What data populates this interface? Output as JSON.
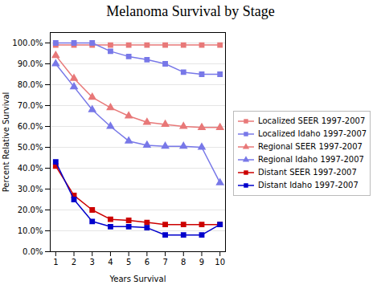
{
  "chart_data": {
    "type": "line",
    "title": "Melanoma Survival by Stage",
    "xlabel": "Years Survival",
    "ylabel": "Percent Relative Survival",
    "x": [
      1,
      2,
      3,
      4,
      5,
      6,
      7,
      8,
      9,
      10
    ],
    "series": [
      {
        "name": "Localized SEER 1997-2007",
        "color": "#e87878",
        "marker": "square",
        "values": [
          99.0,
          99.0,
          99.0,
          99.0,
          99.0,
          99.0,
          99.0,
          99.0,
          99.0,
          99.0
        ]
      },
      {
        "name": "Localized Idaho 1997-2007",
        "color": "#7878e8",
        "marker": "square",
        "values": [
          100.0,
          100.0,
          100.0,
          96.0,
          93.5,
          92.0,
          90.0,
          86.0,
          85.0,
          85.0
        ]
      },
      {
        "name": "Regional SEER 1997-2007",
        "color": "#e87878",
        "marker": "triangle",
        "values": [
          94.0,
          83.0,
          74.0,
          69.0,
          65.0,
          62.0,
          61.0,
          60.0,
          59.5,
          59.5
        ]
      },
      {
        "name": "Regional Idaho 1997-2007",
        "color": "#7878e8",
        "marker": "triangle",
        "values": [
          90.0,
          79.0,
          68.0,
          60.0,
          53.0,
          51.0,
          50.5,
          50.5,
          50.0,
          33.0
        ]
      },
      {
        "name": "Distant SEER 1997-2007",
        "color": "#cc0000",
        "marker": "square",
        "values": [
          41.0,
          27.0,
          20.0,
          15.5,
          15.0,
          14.0,
          13.0,
          13.0,
          13.0,
          13.0
        ]
      },
      {
        "name": "Distant Idaho 1997-2007",
        "color": "#0000cc",
        "marker": "square",
        "values": [
          43.0,
          25.0,
          14.5,
          12.0,
          12.0,
          11.5,
          8.0,
          8.0,
          8.0,
          13.0
        ]
      }
    ],
    "xlim": [
      0.7,
      10.3
    ],
    "xticks": [
      1,
      2,
      3,
      4,
      5,
      6,
      7,
      8,
      9,
      10
    ],
    "ylim": [
      0,
      105
    ],
    "yticks": [
      {
        "value": 0,
        "label": "0.0%"
      },
      {
        "value": 10,
        "label": "10.0%"
      },
      {
        "value": 20,
        "label": "20.0%"
      },
      {
        "value": 30,
        "label": "30.0%"
      },
      {
        "value": 40,
        "label": "40.0%"
      },
      {
        "value": 50,
        "label": "50.0%"
      },
      {
        "value": 60,
        "label": "60.0%"
      },
      {
        "value": 70,
        "label": "70.0%"
      },
      {
        "value": 80,
        "label": "80.0%"
      },
      {
        "value": 90,
        "label": "90.0%"
      },
      {
        "value": 100,
        "label": "100.0%"
      }
    ],
    "grid": "y",
    "legend": "right"
  }
}
